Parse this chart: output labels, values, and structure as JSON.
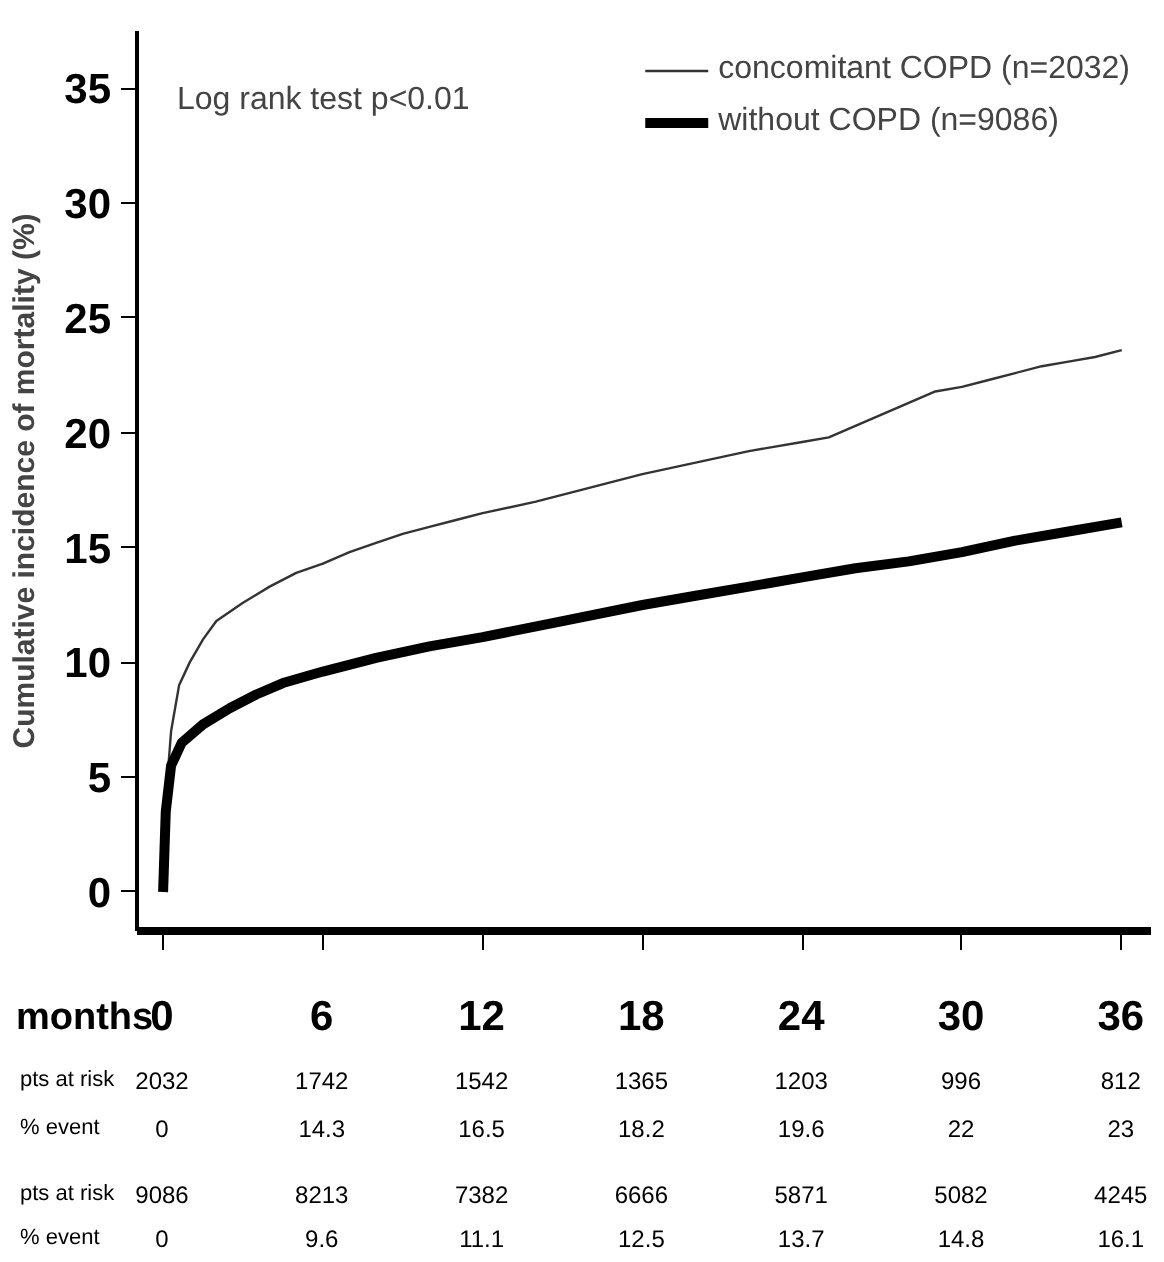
{
  "chart_data": {
    "type": "line",
    "xlabel": "months",
    "ylabel": "Cumulative incidence of mortality (%)",
    "xlim": [
      -0.98,
      37.1
    ],
    "ylim": [
      -1.7,
      37.5
    ],
    "xticks": [
      0,
      6,
      12,
      18,
      24,
      30,
      36
    ],
    "yticks": [
      0,
      5,
      10,
      15,
      20,
      25,
      30,
      35
    ],
    "grid": false,
    "legend": "top right",
    "line_style": "solid",
    "tick_labels": "xy",
    "series": [
      {
        "name": "concomitant COPD (n=2032)",
        "color": "#333333",
        "x": [
          0,
          0.1,
          0.3,
          0.6,
          1,
          1.5,
          2,
          3,
          4,
          5,
          6,
          7,
          8,
          9,
          10,
          11,
          12,
          14,
          16,
          18,
          20,
          22,
          24,
          25,
          26,
          27,
          28,
          29,
          30,
          31,
          32,
          33,
          34,
          35,
          36
        ],
        "values": [
          0,
          4,
          7,
          9,
          10,
          11,
          11.8,
          12.6,
          13.3,
          13.9,
          14.3,
          14.8,
          15.2,
          15.6,
          15.9,
          16.2,
          16.5,
          17,
          17.6,
          18.2,
          18.7,
          19.2,
          19.6,
          19.8,
          20.3,
          20.8,
          21.3,
          21.8,
          22,
          22.3,
          22.6,
          22.9,
          23.1,
          23.3,
          23.6
        ]
      },
      {
        "name": "without COPD (n=9086)",
        "color": "#000000",
        "x": [
          0,
          0.1,
          0.3,
          0.7,
          1.5,
          2.5,
          3.5,
          4.5,
          6,
          8,
          10,
          12,
          15,
          18,
          20,
          22,
          24,
          26,
          28,
          30,
          32,
          34,
          36
        ],
        "values": [
          0,
          3.5,
          5.5,
          6.5,
          7.3,
          8,
          8.6,
          9.1,
          9.6,
          10.2,
          10.7,
          11.1,
          11.8,
          12.5,
          12.9,
          13.3,
          13.7,
          14.1,
          14.4,
          14.8,
          15.3,
          15.7,
          16.1
        ]
      }
    ],
    "annotations": [
      "Log rank test p<0.01",
      "pts at risk",
      "2032",
      "1742",
      "1542",
      "1365",
      "1203",
      "996",
      "812",
      "% event",
      "0",
      "14.3",
      "16.5",
      "18.2",
      "19.6",
      "22",
      "23",
      "pts at risk",
      "9086",
      "8213",
      "7382",
      "6666",
      "5871",
      "5082",
      "4245",
      "% event",
      "0",
      "9.6",
      "11.1",
      "12.5",
      "13.7",
      "14.8",
      "16.1"
    ]
  }
}
